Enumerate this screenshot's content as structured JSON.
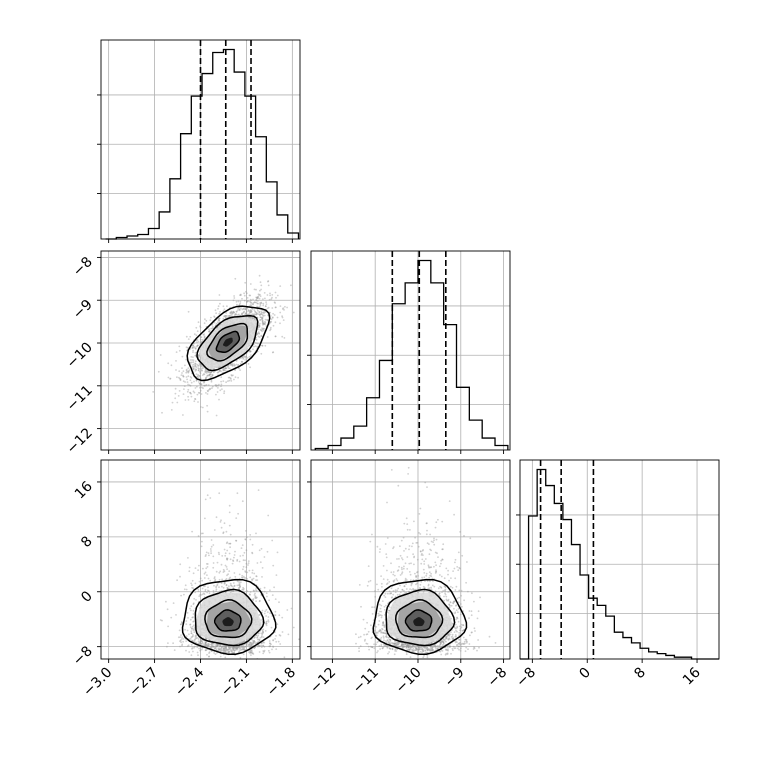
{
  "chart_data": {
    "type": "corner",
    "grid": true,
    "variables": [
      {
        "index": 0,
        "range": [
          -3.05,
          -1.75
        ],
        "ticks": [
          -3.0,
          -2.7,
          -2.4,
          -2.1,
          -1.8
        ],
        "tick_labels": [
          "−3.0",
          "−2.7",
          "−2.4",
          "−2.1",
          "−1.8"
        ],
        "quantiles": [
          -2.4,
          -2.235,
          -2.07
        ]
      },
      {
        "index": 1,
        "range": [
          -12.5,
          -7.85
        ],
        "ticks": [
          -12,
          -11,
          -10,
          -9,
          -8
        ],
        "tick_labels": [
          "−12",
          "−11",
          "−10",
          "−9",
          "−8"
        ],
        "quantiles": [
          -10.6,
          -9.97,
          -9.35
        ]
      },
      {
        "index": 2,
        "range": [
          -9.8,
          19.2
        ],
        "ticks": [
          -8,
          0,
          8,
          16
        ],
        "tick_labels": [
          "−8",
          "0",
          "8",
          "16"
        ],
        "quantiles": [
          -6.8,
          -3.8,
          0.9
        ]
      }
    ],
    "histograms": [
      {
        "variable": 0,
        "type": "step",
        "bin_edges": [
          -3.02,
          -2.95,
          -2.88,
          -2.81,
          -2.74,
          -2.67,
          -2.6,
          -2.53,
          -2.46,
          -2.39,
          -2.32,
          -2.25,
          -2.18,
          -2.11,
          -2.04,
          -1.97,
          -1.9,
          -1.83,
          -1.76
        ],
        "counts": [
          0,
          1,
          2,
          3,
          7,
          18,
          40,
          70,
          95,
          110,
          124,
          126,
          111,
          95,
          68,
          38,
          16,
          4
        ]
      },
      {
        "variable": 1,
        "type": "step",
        "bin_edges": [
          -12.4,
          -12.1,
          -11.8,
          -11.5,
          -11.2,
          -10.9,
          -10.6,
          -10.3,
          -10.0,
          -9.7,
          -9.4,
          -9.1,
          -8.8,
          -8.5,
          -8.2,
          -7.9
        ],
        "counts": [
          1,
          3,
          8,
          16,
          35,
          60,
          98,
          112,
          127,
          112,
          84,
          42,
          20,
          8,
          3
        ]
      },
      {
        "variable": 2,
        "type": "step",
        "bin_edges": [
          -9.8,
          -8.55,
          -7.3,
          -6.05,
          -4.8,
          -3.55,
          -2.3,
          -1.05,
          0.2,
          1.45,
          2.7,
          3.95,
          5.2,
          6.45,
          7.7,
          8.95,
          10.2,
          11.45,
          12.7,
          13.95,
          15.2,
          19.2
        ],
        "counts": [
          0,
          80,
          106,
          97,
          87,
          78,
          64,
          47,
          34,
          30,
          24,
          15,
          12,
          9,
          6,
          4,
          3,
          2,
          1,
          1,
          0
        ]
      }
    ],
    "panels_2d": [
      {
        "x_variable": 0,
        "y_variable": 1,
        "type": "scatter-with-density-contours",
        "center": [
          -2.22,
          -9.98
        ],
        "sd": [
          0.13,
          0.5
        ],
        "correlation": 0.65
      },
      {
        "x_variable": 0,
        "y_variable": 2,
        "type": "scatter-with-density-contours",
        "center": [
          -2.22,
          -4.5
        ],
        "sd": [
          0.13,
          3.8
        ],
        "correlation": 0.0
      },
      {
        "x_variable": 1,
        "y_variable": 2,
        "type": "scatter-with-density-contours",
        "center": [
          -9.98,
          -4.5
        ],
        "sd": [
          0.5,
          3.8
        ],
        "correlation": 0.0
      }
    ]
  }
}
